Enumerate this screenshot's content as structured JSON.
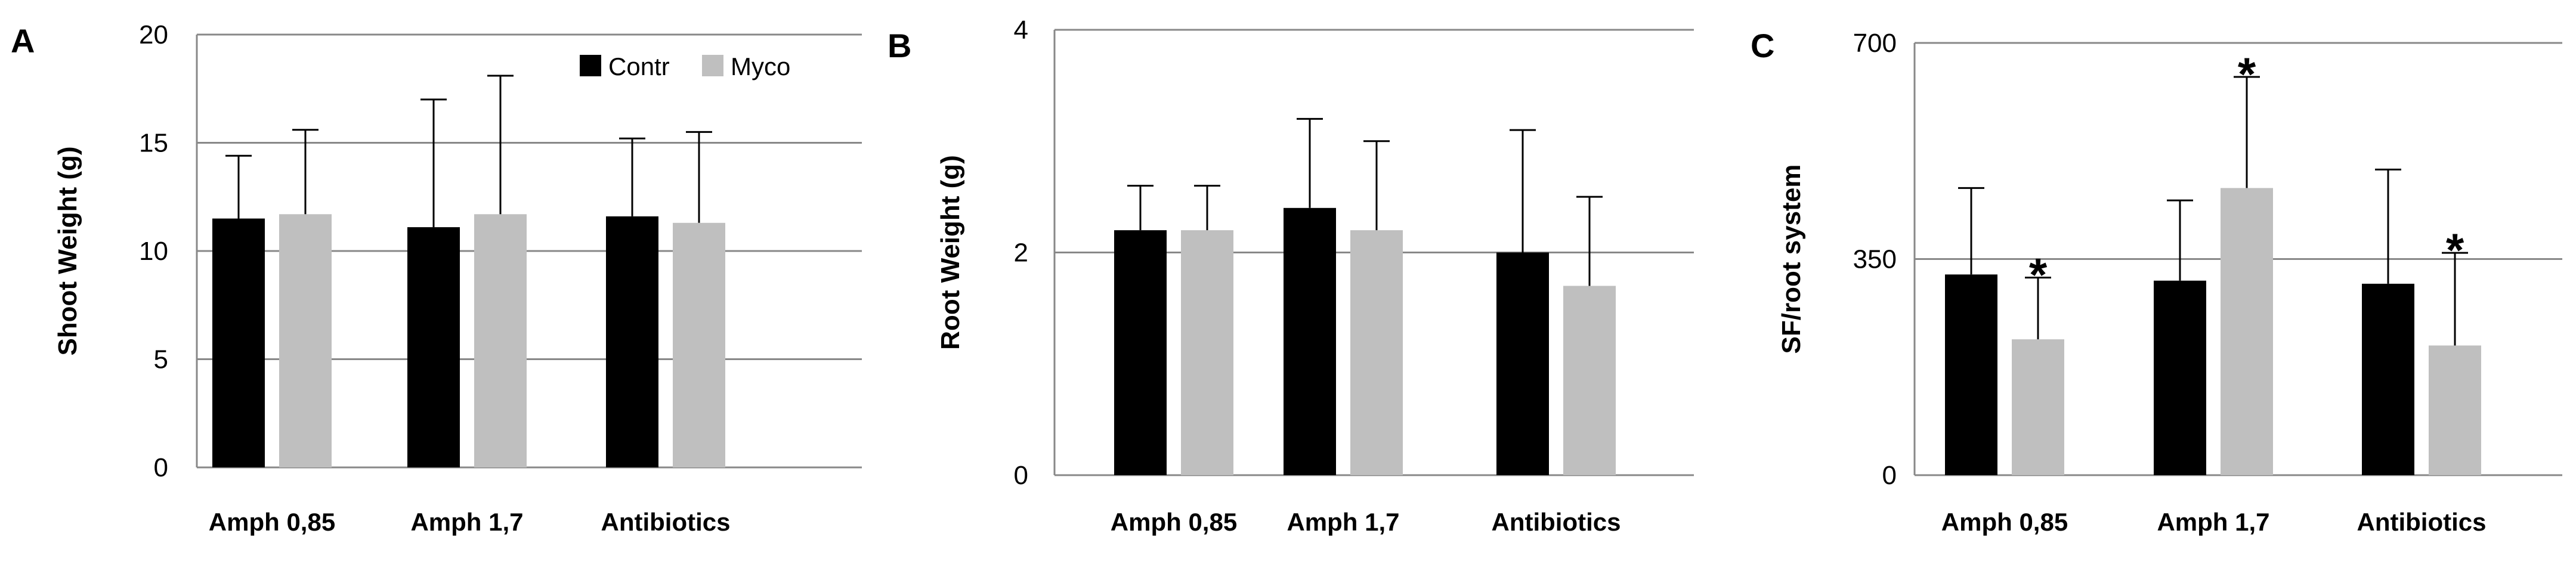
{
  "colors": {
    "contr": "#000000",
    "myco": "#bfbfbf",
    "grid": "#888888",
    "error": "#000000"
  },
  "legend": {
    "position": "top-right",
    "items": [
      {
        "label": "Contr",
        "color": "#000000"
      },
      {
        "label": "Myco",
        "color": "#bfbfbf"
      }
    ]
  },
  "chart_data": [
    {
      "panel": "A",
      "type": "bar",
      "ylabel": "Shoot Weight (g)",
      "xlabel": "",
      "ylim": [
        0,
        20
      ],
      "yticks": [
        0,
        5,
        10,
        15,
        20
      ],
      "grid": true,
      "categories": [
        "Amph 0,85",
        "Amph 1,7",
        "Antibiotics"
      ],
      "series": [
        {
          "name": "Contr",
          "values": [
            11.5,
            11.1,
            11.6
          ],
          "errors": [
            2.9,
            5.9,
            3.6
          ]
        },
        {
          "name": "Myco",
          "values": [
            11.7,
            11.7,
            11.3
          ],
          "errors": [
            3.9,
            6.4,
            4.2
          ]
        }
      ],
      "annotations": []
    },
    {
      "panel": "B",
      "type": "bar",
      "ylabel": "Root Weight (g)",
      "xlabel": "",
      "ylim": [
        0,
        4
      ],
      "yticks": [
        0,
        2,
        4
      ],
      "grid": true,
      "categories": [
        "Amph 0,85",
        "Amph 1,7",
        "Antibiotics"
      ],
      "series": [
        {
          "name": "Contr",
          "values": [
            2.2,
            2.4,
            2.0
          ],
          "errors": [
            0.4,
            0.8,
            1.1
          ]
        },
        {
          "name": "Myco",
          "values": [
            2.2,
            2.2,
            1.7
          ],
          "errors": [
            0.4,
            0.8,
            0.8
          ]
        }
      ],
      "annotations": []
    },
    {
      "panel": "C",
      "type": "bar",
      "ylabel": "SF/root system",
      "xlabel": "",
      "ylim": [
        0,
        700
      ],
      "yticks": [
        0,
        350,
        700
      ],
      "grid": true,
      "categories": [
        "Amph 0,85",
        "Amph 1,7",
        "Antibiotics"
      ],
      "series": [
        {
          "name": "Contr",
          "values": [
            325,
            315,
            310
          ],
          "errors": [
            140,
            130,
            185
          ]
        },
        {
          "name": "Myco",
          "values": [
            220,
            465,
            210
          ],
          "errors": [
            100,
            180,
            150
          ]
        }
      ],
      "annotations": [
        {
          "text": "*",
          "series": 1,
          "category": 0
        },
        {
          "text": "*",
          "series": 1,
          "category": 1
        },
        {
          "text": "*",
          "series": 1,
          "category": 2
        }
      ]
    }
  ]
}
